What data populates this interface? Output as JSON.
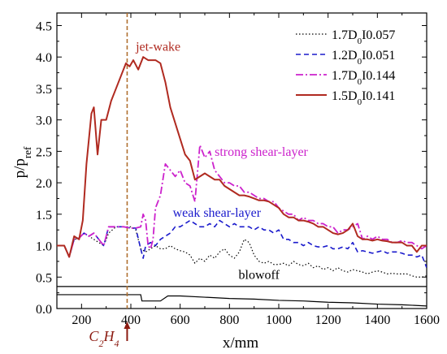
{
  "chart_data": {
    "type": "line",
    "title": "",
    "xlabel": "x/mm",
    "ylabel_main": "p/p",
    "ylabel_sub": "ref",
    "xlim": [
      100,
      1600
    ],
    "ylim": [
      0,
      4.7
    ],
    "x_ticks": [
      200,
      400,
      600,
      800,
      1000,
      1200,
      1400,
      1600
    ],
    "y_ticks": [
      0.0,
      0.5,
      1.0,
      1.5,
      2.0,
      2.5,
      3.0,
      3.5,
      4.0,
      4.5
    ],
    "y_tick_labels": [
      "0.0",
      "0.5",
      "1.0",
      "1.5",
      "2.0",
      "2.5",
      "3.0",
      "3.5",
      "4.0",
      "4.5"
    ],
    "legend_position": "top-right",
    "series": [
      {
        "name": "1.7D0I0.057",
        "label_main": "1.7D",
        "label_sub": "0",
        "label_rest": "I0.057",
        "color": "#000000",
        "dash": "1.5,2.5",
        "x": [
          100,
          130,
          150,
          170,
          190,
          210,
          230,
          250,
          270,
          290,
          310,
          340,
          370,
          400,
          420,
          440,
          460,
          480,
          500,
          520,
          540,
          560,
          580,
          600,
          620,
          640,
          660,
          680,
          700,
          720,
          740,
          760,
          780,
          800,
          820,
          840,
          860,
          880,
          900,
          920,
          940,
          960,
          980,
          1000,
          1020,
          1040,
          1060,
          1080,
          1100,
          1120,
          1140,
          1160,
          1180,
          1200,
          1220,
          1240,
          1260,
          1280,
          1300,
          1320,
          1340,
          1360,
          1380,
          1400,
          1420,
          1440,
          1460,
          1480,
          1500,
          1520,
          1540,
          1560,
          1580,
          1600
        ],
        "y": [
          1.0,
          1.0,
          0.82,
          1.1,
          1.12,
          1.2,
          1.15,
          1.1,
          1.05,
          1.0,
          1.2,
          1.3,
          1.3,
          1.3,
          1.25,
          0.95,
          0.9,
          0.95,
          1.0,
          0.95,
          0.95,
          1.0,
          0.95,
          0.92,
          0.9,
          0.85,
          0.72,
          0.8,
          0.75,
          0.85,
          0.8,
          0.9,
          0.95,
          0.85,
          0.8,
          0.9,
          1.1,
          1.05,
          0.85,
          0.75,
          0.72,
          0.75,
          0.7,
          0.7,
          0.72,
          0.68,
          0.75,
          0.7,
          0.68,
          0.72,
          0.65,
          0.68,
          0.62,
          0.65,
          0.6,
          0.65,
          0.6,
          0.58,
          0.62,
          0.6,
          0.58,
          0.55,
          0.58,
          0.6,
          0.58,
          0.55,
          0.56,
          0.55,
          0.55,
          0.55,
          0.52,
          0.5,
          0.5,
          0.52
        ]
      },
      {
        "name": "1.2D0I0.051",
        "label_main": "1.2D",
        "label_sub": "0",
        "label_rest": "I0.051",
        "color": "#1a1acc",
        "dash": "6,4",
        "x": [
          100,
          130,
          150,
          170,
          190,
          210,
          230,
          250,
          270,
          290,
          310,
          340,
          370,
          400,
          420,
          440,
          450,
          460,
          480,
          500,
          520,
          540,
          560,
          580,
          600,
          620,
          640,
          660,
          680,
          700,
          720,
          740,
          760,
          780,
          800,
          820,
          840,
          860,
          880,
          900,
          920,
          940,
          960,
          980,
          1000,
          1020,
          1040,
          1060,
          1080,
          1100,
          1120,
          1140,
          1160,
          1180,
          1200,
          1220,
          1240,
          1260,
          1280,
          1300,
          1320,
          1340,
          1360,
          1380,
          1400,
          1420,
          1440,
          1460,
          1480,
          1500,
          1520,
          1540,
          1560,
          1580,
          1600
        ],
        "y": [
          1.0,
          1.0,
          0.82,
          1.1,
          1.12,
          1.2,
          1.15,
          1.2,
          1.1,
          1.0,
          1.3,
          1.3,
          1.3,
          1.28,
          1.28,
          0.95,
          0.8,
          1.0,
          1.05,
          1.0,
          1.1,
          1.15,
          1.2,
          1.3,
          1.3,
          1.35,
          1.4,
          1.35,
          1.3,
          1.3,
          1.35,
          1.3,
          1.4,
          1.35,
          1.3,
          1.35,
          1.3,
          1.3,
          1.3,
          1.25,
          1.3,
          1.25,
          1.25,
          1.2,
          1.25,
          1.1,
          1.1,
          1.05,
          1.05,
          1.0,
          1.05,
          1.0,
          0.98,
          0.98,
          1.0,
          0.95,
          0.95,
          0.98,
          0.95,
          1.05,
          0.9,
          0.92,
          0.9,
          0.88,
          0.9,
          0.92,
          0.88,
          0.9,
          0.9,
          0.88,
          0.85,
          0.85,
          0.82,
          0.85,
          0.65
        ]
      },
      {
        "name": "1.7D0I0.144",
        "label_main": "1.7D",
        "label_sub": "0",
        "label_rest": "I0.144",
        "color": "#cc22cc",
        "dash": "9,3,2,3",
        "x": [
          100,
          130,
          150,
          170,
          190,
          210,
          230,
          250,
          270,
          290,
          310,
          340,
          370,
          400,
          420,
          440,
          450,
          460,
          470,
          480,
          490,
          500,
          520,
          540,
          560,
          580,
          600,
          620,
          640,
          660,
          680,
          700,
          720,
          740,
          760,
          780,
          800,
          820,
          840,
          860,
          880,
          900,
          920,
          940,
          960,
          980,
          1000,
          1020,
          1040,
          1060,
          1080,
          1100,
          1120,
          1140,
          1160,
          1180,
          1200,
          1220,
          1240,
          1260,
          1280,
          1300,
          1320,
          1340,
          1360,
          1380,
          1400,
          1420,
          1440,
          1460,
          1480,
          1500,
          1520,
          1540,
          1560,
          1580,
          1600
        ],
        "y": [
          1.0,
          1.0,
          0.82,
          1.1,
          1.12,
          1.2,
          1.15,
          1.2,
          1.1,
          1.0,
          1.3,
          1.3,
          1.3,
          1.28,
          1.28,
          1.3,
          1.5,
          1.4,
          1.0,
          0.95,
          1.1,
          1.6,
          1.8,
          2.3,
          2.2,
          2.1,
          2.2,
          2.0,
          1.95,
          1.7,
          2.6,
          2.4,
          2.5,
          2.2,
          2.1,
          2.0,
          2.0,
          1.95,
          1.95,
          1.85,
          1.85,
          1.8,
          1.75,
          1.75,
          1.7,
          1.7,
          1.6,
          1.55,
          1.5,
          1.5,
          1.4,
          1.45,
          1.4,
          1.4,
          1.35,
          1.35,
          1.3,
          1.3,
          1.2,
          1.25,
          1.25,
          1.3,
          1.35,
          1.1,
          1.15,
          1.1,
          1.15,
          1.1,
          1.1,
          1.05,
          1.05,
          1.08,
          1.05,
          1.05,
          1.0,
          0.95,
          1.0
        ]
      },
      {
        "name": "1.5D0I0.141",
        "label_main": "1.5D",
        "label_sub": "0",
        "label_rest": "I0.141",
        "color": "#b02a20",
        "dash": "",
        "x": [
          100,
          130,
          150,
          170,
          190,
          205,
          220,
          240,
          250,
          265,
          280,
          300,
          320,
          340,
          360,
          380,
          395,
          410,
          430,
          450,
          470,
          500,
          520,
          540,
          560,
          580,
          600,
          620,
          640,
          660,
          680,
          700,
          720,
          740,
          760,
          780,
          800,
          820,
          840,
          860,
          880,
          900,
          920,
          940,
          960,
          980,
          1000,
          1020,
          1040,
          1060,
          1080,
          1100,
          1120,
          1140,
          1160,
          1180,
          1200,
          1220,
          1240,
          1260,
          1280,
          1300,
          1320,
          1340,
          1360,
          1380,
          1400,
          1420,
          1440,
          1460,
          1480,
          1500,
          1520,
          1540,
          1560,
          1580,
          1600
        ],
        "y": [
          1.0,
          1.0,
          0.82,
          1.15,
          1.1,
          1.4,
          2.3,
          3.1,
          3.2,
          2.45,
          3.0,
          3.0,
          3.3,
          3.5,
          3.7,
          3.9,
          3.85,
          3.95,
          3.8,
          4.0,
          3.95,
          3.95,
          3.9,
          3.6,
          3.2,
          2.95,
          2.7,
          2.45,
          2.35,
          2.05,
          2.1,
          2.15,
          2.1,
          2.05,
          2.05,
          1.95,
          1.9,
          1.85,
          1.8,
          1.8,
          1.78,
          1.75,
          1.72,
          1.72,
          1.7,
          1.65,
          1.6,
          1.5,
          1.45,
          1.45,
          1.4,
          1.4,
          1.38,
          1.35,
          1.3,
          1.3,
          1.25,
          1.2,
          1.18,
          1.2,
          1.25,
          1.35,
          1.15,
          1.1,
          1.1,
          1.08,
          1.1,
          1.08,
          1.07,
          1.05,
          1.05,
          1.05,
          1.0,
          1.0,
          0.9,
          1.0,
          1.0
        ]
      }
    ],
    "profile": {
      "color": "#000000",
      "top_y": 0.35,
      "bottom_x": [
        100,
        440,
        445,
        520,
        550,
        600,
        700,
        800,
        900,
        1000,
        1100,
        1200,
        1300,
        1400,
        1500,
        1600
      ],
      "bottom_y": [
        0.22,
        0.22,
        0.12,
        0.12,
        0.2,
        0.2,
        0.18,
        0.16,
        0.15,
        0.13,
        0.12,
        0.1,
        0.09,
        0.07,
        0.06,
        0.04
      ]
    },
    "annotations": [
      {
        "text": "jet-wake",
        "x": 420,
        "y": 4.1,
        "color": "#b02a20",
        "anchor": "start"
      },
      {
        "text": "strong shear-layer",
        "x": 740,
        "y": 2.43,
        "color": "#cc22cc",
        "anchor": "start"
      },
      {
        "text": "weak shear-layer",
        "x": 570,
        "y": 1.46,
        "color": "#1a1acc",
        "anchor": "start"
      },
      {
        "text": "blowoff",
        "x": 920,
        "y": 0.47,
        "color": "#000000",
        "anchor": "middle"
      }
    ],
    "marker": {
      "x": 385,
      "color": "#b07030",
      "label": "C2H4",
      "label_main": "C",
      "label_sub1": "2",
      "label_mid": "H",
      "label_sub2": "4",
      "arrow_color": "#8b1a10"
    }
  }
}
